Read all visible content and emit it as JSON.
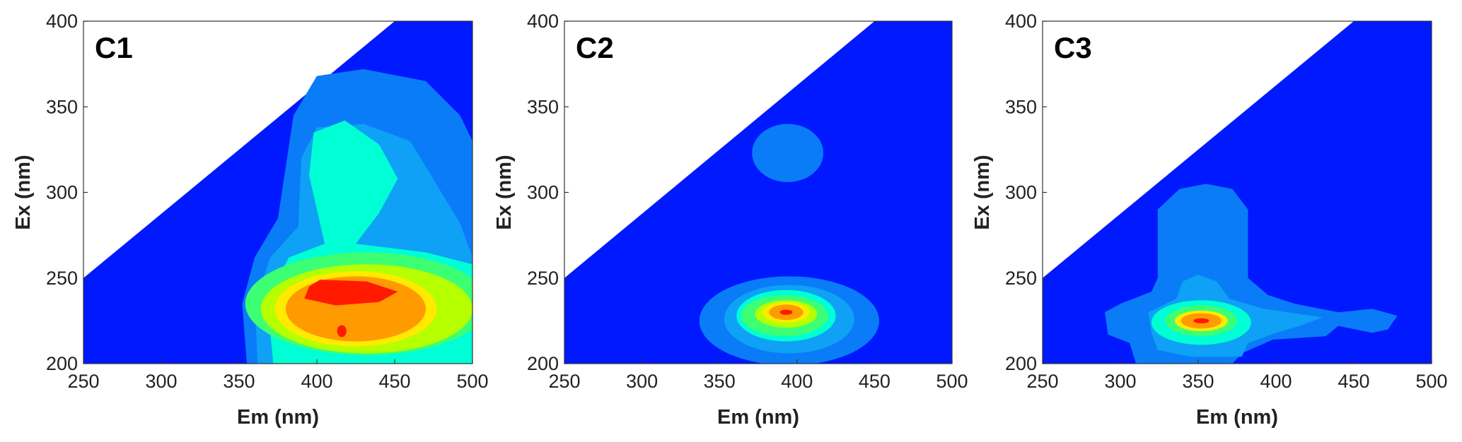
{
  "chart_data": [
    {
      "type": "heatmap",
      "panel_label": "C1",
      "xlabel": "Em  (nm)",
      "ylabel": "Ex  (nm)",
      "xlim": [
        250,
        500
      ],
      "ylim": [
        200,
        400
      ],
      "xticks": [
        "250",
        "300",
        "350",
        "400",
        "450",
        "500"
      ],
      "yticks": [
        "200",
        "250",
        "300",
        "350",
        "400"
      ],
      "no_data_region": "upper-left",
      "peaks": [
        {
          "em": 415,
          "ex": 240,
          "level": "max"
        },
        {
          "em": 415,
          "ex": 220,
          "level": "local"
        }
      ]
    },
    {
      "type": "heatmap",
      "panel_label": "C2",
      "xlabel": "Em  (nm)",
      "ylabel": "Ex  (nm)",
      "xlim": [
        250,
        500
      ],
      "ylim": [
        200,
        400
      ],
      "xticks": [
        "250",
        "300",
        "350",
        "400",
        "450",
        "500"
      ],
      "yticks": [
        "200",
        "250",
        "300",
        "350",
        "400"
      ],
      "no_data_region": "upper-left",
      "peaks": [
        {
          "em": 395,
          "ex": 230,
          "level": "max"
        },
        {
          "em": 395,
          "ex": 322,
          "level": "low"
        }
      ]
    },
    {
      "type": "heatmap",
      "panel_label": "C3",
      "xlabel": "Em  (nm)",
      "ylabel": "Ex  (nm)",
      "xlim": [
        250,
        500
      ],
      "ylim": [
        200,
        400
      ],
      "xticks": [
        "250",
        "300",
        "350",
        "400",
        "450",
        "500"
      ],
      "yticks": [
        "200",
        "250",
        "300",
        "350",
        "400"
      ],
      "no_data_region": "upper-left",
      "peaks": [
        {
          "em": 352,
          "ex": 225,
          "level": "max"
        }
      ]
    }
  ],
  "colormap": [
    "#0019ff",
    "#0a7cf8",
    "#0ea1f5",
    "#00ffd5",
    "#3dff73",
    "#b5ff00",
    "#ffea00",
    "#ff9a00",
    "#ff1a00"
  ]
}
